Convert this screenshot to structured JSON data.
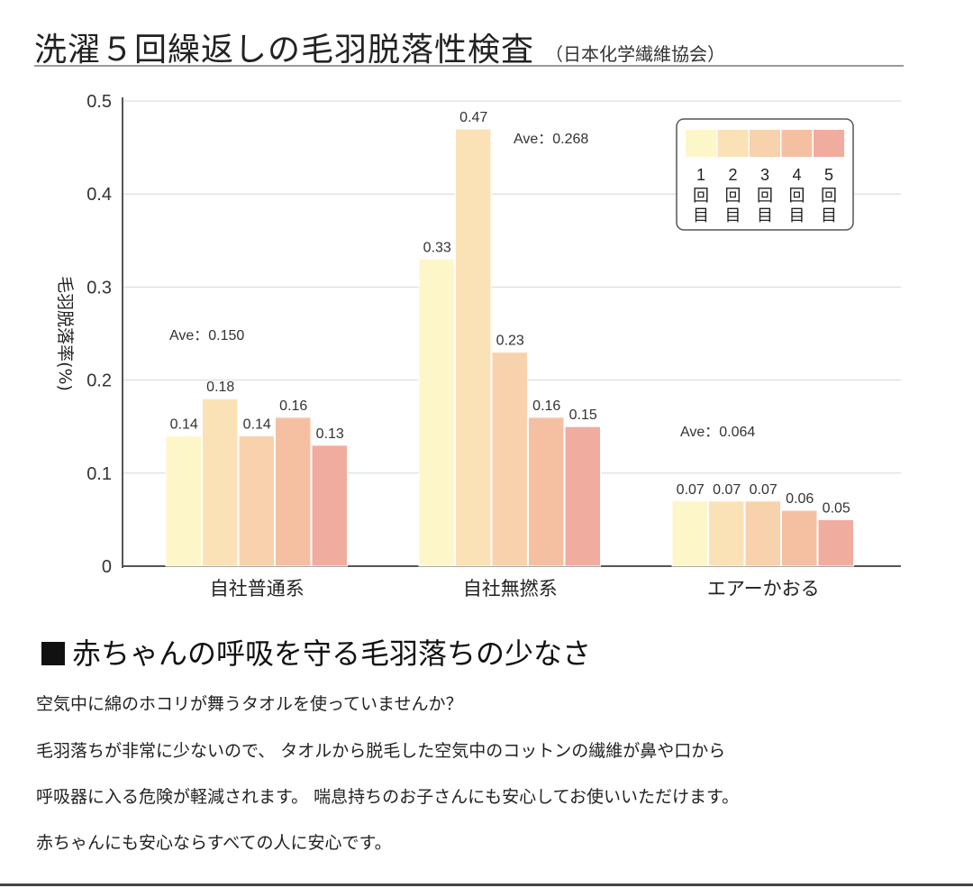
{
  "header": {
    "title": "洗濯５回繰返しの毛羽脱落性検査",
    "source": "（日本化学繊維協会）"
  },
  "chart_data": {
    "type": "bar",
    "categories": [
      "自社普通系",
      "自社無撚系",
      "エアーかおる"
    ],
    "series": [
      {
        "name": "1回目",
        "values": [
          0.14,
          0.33,
          0.07
        ]
      },
      {
        "name": "2回目",
        "values": [
          0.18,
          0.47,
          0.07
        ]
      },
      {
        "name": "3回目",
        "values": [
          0.14,
          0.23,
          0.07
        ]
      },
      {
        "name": "4回目",
        "values": [
          0.16,
          0.16,
          0.06
        ]
      },
      {
        "name": "5回目",
        "values": [
          0.13,
          0.15,
          0.05
        ]
      }
    ],
    "value_labels": [
      [
        "0.14",
        "0.18",
        "0.14",
        "0.16",
        "0.13"
      ],
      [
        "0.33",
        "0.47",
        "0.23",
        "0.16",
        "0.15"
      ],
      [
        "0.07",
        "0.07",
        "0.07",
        "0.06",
        "0.05"
      ]
    ],
    "averages": [
      "Ave：0.150",
      "Ave：0.268",
      "Ave：0.064"
    ],
    "legend_numbers": [
      "1",
      "2",
      "3",
      "4",
      "5"
    ],
    "legend_kanji": [
      "回",
      "目"
    ],
    "ylabel": "毛羽脱落率(%)",
    "ylim": [
      0,
      0.5
    ],
    "yticks": [
      "0",
      "0.1",
      "0.2",
      "0.3",
      "0.4",
      "0.5"
    ],
    "grid": true,
    "legend_position": "top-right",
    "colors": [
      "#fdf6c8",
      "#fbe2b6",
      "#f8d2ac",
      "#f5c0a2",
      "#f1aca0"
    ]
  },
  "section": {
    "heading": "赤ちゃんの呼吸を守る毛羽落ちの少なさ",
    "lines": [
      "空気中に綿のホコリが舞うタオルを使っていませんか？",
      "毛羽落ちが非常に少ないので、 タオルから脱毛した空気中のコットンの繊維が鼻や口から",
      "呼吸器に入る危険が軽減されます。 喘息持ちのお子さんにも安心してお使いいただけます。",
      "赤ちゃんにも安心ならすべての人に安心です。"
    ]
  }
}
